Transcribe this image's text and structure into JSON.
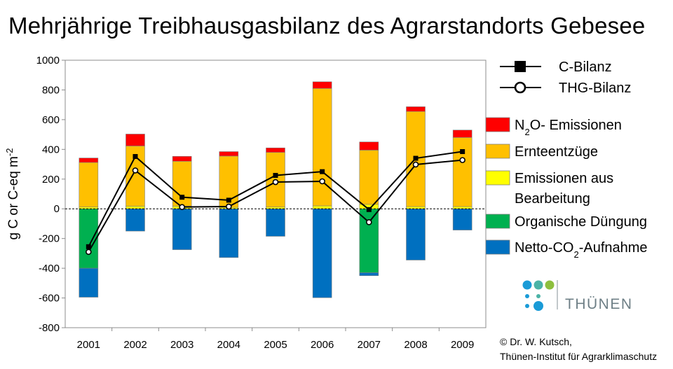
{
  "title": "Mehrjährige Treibhausgasbilanz des Agrarstandorts Gebesee",
  "chart_data": {
    "type": "bar",
    "stacked": true,
    "categories": [
      "2001",
      "2002",
      "2003",
      "2004",
      "2005",
      "2006",
      "2007",
      "2008",
      "2009"
    ],
    "ylabel_main": "g C or C-eq m",
    "ylabel_sup": "-2",
    "ylim": [
      -800,
      1000
    ],
    "yticks": [
      -800,
      -600,
      -400,
      -200,
      0,
      200,
      400,
      600,
      800,
      1000
    ],
    "grid": false,
    "zero_line": "dashed",
    "positive_series": [
      {
        "key": "bearbeitung",
        "color": "#ffff00",
        "values": [
          12,
          18,
          18,
          10,
          12,
          20,
          30,
          15,
          15
        ]
      },
      {
        "key": "ernte",
        "color": "#ffc000",
        "values": [
          300,
          405,
          302,
          345,
          368,
          790,
          365,
          640,
          465
        ]
      },
      {
        "key": "n2o",
        "color": "#ff0000",
        "values": [
          30,
          80,
          33,
          30,
          30,
          45,
          55,
          32,
          50
        ]
      }
    ],
    "negative_series": [
      {
        "key": "duengung",
        "color": "#00b050",
        "values": [
          -400,
          0,
          0,
          0,
          0,
          0,
          -430,
          0,
          0
        ]
      },
      {
        "key": "co2",
        "color": "#0070c0",
        "values": [
          -195,
          -150,
          -275,
          -328,
          -185,
          -598,
          -20,
          -345,
          -143
        ]
      }
    ],
    "line_series": [
      {
        "key": "cbilanz",
        "marker": "square",
        "values": [
          -255,
          352,
          78,
          58,
          225,
          250,
          -5,
          340,
          385
        ]
      },
      {
        "key": "thgbilanz",
        "marker": "circle",
        "values": [
          -290,
          258,
          12,
          15,
          180,
          185,
          -90,
          298,
          328
        ]
      }
    ],
    "legend": {
      "placement": "right",
      "lines": [
        {
          "key": "cbilanz",
          "marker": "square",
          "label": "C-Bilanz"
        },
        {
          "key": "thgbilanz",
          "marker": "circle",
          "label": "THG-Bilanz"
        }
      ],
      "bars": [
        {
          "key": "n2o",
          "color": "#ff0000",
          "label_main": "N",
          "label_sub": "2",
          "label_rest": "O- Emissionen"
        },
        {
          "key": "ernte",
          "color": "#ffc000",
          "label_line1": "Ernteentzüge"
        },
        {
          "key": "bearbeitung",
          "color": "#ffff00",
          "label_line1": "Emissionen aus",
          "label_line2": "Bearbeitung"
        },
        {
          "key": "duengung",
          "color": "#00b050",
          "label_line1": "Organische Düngung"
        },
        {
          "key": "co2",
          "color": "#0070c0",
          "label_main": "Netto-CO",
          "label_sub": "2",
          "label_rest": "-Aufnahme"
        }
      ]
    }
  },
  "logo": {
    "text": "THÜNEN",
    "dot_colors": [
      "#1a9bd7",
      "#4bb3a6",
      "#8dbf3e"
    ]
  },
  "copyright": {
    "line1": "© Dr. W. Kutsch,",
    "line2": "Thünen-Institut für Agrarklimaschutz"
  }
}
